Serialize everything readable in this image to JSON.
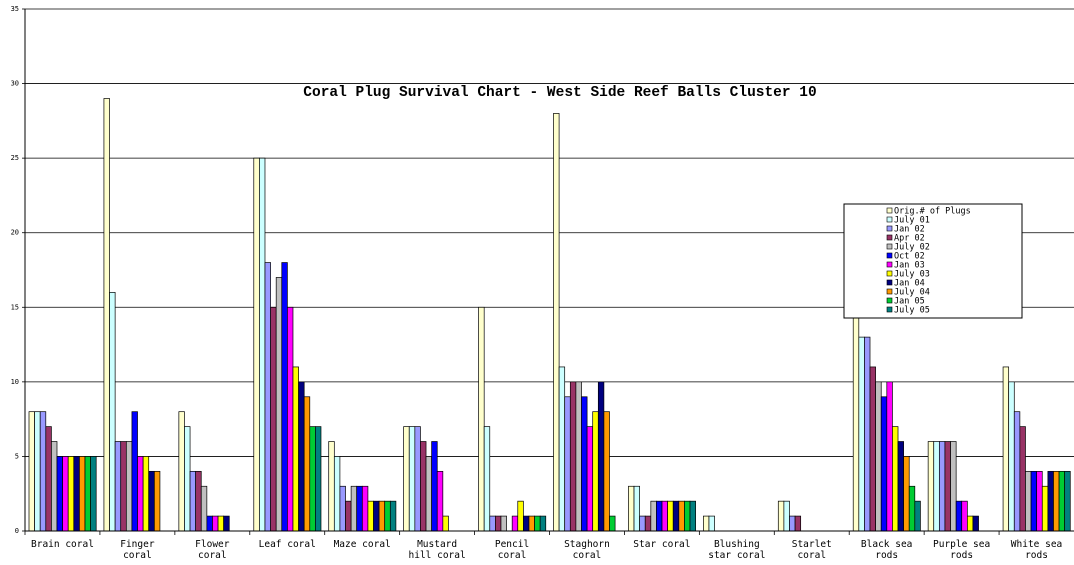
{
  "chart_data": {
    "type": "bar",
    "title": "Coral Plug Survival Chart - West Side Reef Balls Cluster 10",
    "xlabel": "",
    "ylabel": "",
    "ylim": [
      0,
      35
    ],
    "yticks": [
      0,
      5,
      10,
      15,
      20,
      25,
      30,
      35
    ],
    "grid": true,
    "legend_position": "right",
    "categories": [
      "Brain coral",
      "Finger coral",
      "Flower coral",
      "Leaf coral",
      "Maze coral",
      "Mustard hill coral",
      "Pencil coral",
      "Staghorn coral",
      "Star coral",
      "Blushing star coral",
      "Starlet coral",
      "Black sea rods",
      "Purple sea rods",
      "White sea rods"
    ],
    "category_lines": [
      [
        "Brain coral"
      ],
      [
        "Finger",
        "coral"
      ],
      [
        "Flower",
        "coral"
      ],
      [
        "Leaf coral"
      ],
      [
        "Maze coral"
      ],
      [
        "Mustard",
        "hill coral"
      ],
      [
        "Pencil",
        "coral"
      ],
      [
        "Staghorn",
        "coral"
      ],
      [
        "Star coral"
      ],
      [
        "Blushing",
        "star coral"
      ],
      [
        "Starlet",
        "coral"
      ],
      [
        "Black sea",
        "rods"
      ],
      [
        "Purple sea",
        "rods"
      ],
      [
        "White sea",
        "rods"
      ]
    ],
    "series": [
      {
        "name": "Orig.# of Plugs",
        "color": "#FFFFCC",
        "values": [
          8,
          29,
          8,
          25,
          6,
          7,
          15,
          28,
          3,
          1,
          2,
          15,
          6,
          11
        ]
      },
      {
        "name": "July 01",
        "color": "#CCFFFF",
        "values": [
          8,
          16,
          7,
          25,
          5,
          7,
          7,
          11,
          3,
          1,
          2,
          13,
          6,
          10
        ]
      },
      {
        "name": "Jan 02",
        "color": "#9999FF",
        "values": [
          8,
          6,
          4,
          18,
          3,
          7,
          1,
          9,
          1,
          0,
          1,
          13,
          6,
          8
        ]
      },
      {
        "name": "Apr 02",
        "color": "#993366",
        "values": [
          7,
          6,
          4,
          15,
          2,
          6,
          1,
          10,
          1,
          0,
          1,
          11,
          6,
          7
        ]
      },
      {
        "name": "July 02",
        "color": "#C0C0C0",
        "values": [
          6,
          6,
          3,
          17,
          3,
          5,
          1,
          10,
          2,
          0,
          0,
          10,
          6,
          4
        ]
      },
      {
        "name": "Oct 02",
        "color": "#0000FF",
        "values": [
          5,
          8,
          1,
          18,
          3,
          6,
          0,
          9,
          2,
          0,
          0,
          9,
          2,
          4
        ]
      },
      {
        "name": "Jan 03",
        "color": "#FF00FF",
        "values": [
          5,
          5,
          1,
          15,
          3,
          4,
          1,
          7,
          2,
          0,
          0,
          10,
          2,
          4
        ]
      },
      {
        "name": "July 03",
        "color": "#FFFF00",
        "values": [
          5,
          5,
          1,
          11,
          2,
          1,
          2,
          8,
          2,
          0,
          0,
          7,
          1,
          3
        ]
      },
      {
        "name": "Jan 04",
        "color": "#000080",
        "values": [
          5,
          4,
          1,
          10,
          2,
          0,
          1,
          10,
          2,
          0,
          0,
          6,
          1,
          4
        ]
      },
      {
        "name": "July 04",
        "color": "#FF9900",
        "values": [
          5,
          4,
          0,
          9,
          2,
          0,
          1,
          8,
          2,
          0,
          0,
          5,
          0,
          4
        ]
      },
      {
        "name": "Jan 05",
        "color": "#00CC33",
        "values": [
          5,
          0,
          0,
          7,
          2,
          0,
          1,
          1,
          2,
          0,
          0,
          3,
          0,
          4
        ]
      },
      {
        "name": "July 05",
        "color": "#008080",
        "values": [
          5,
          0,
          0,
          7,
          2,
          0,
          1,
          0,
          2,
          0,
          0,
          2,
          0,
          4
        ]
      }
    ]
  }
}
